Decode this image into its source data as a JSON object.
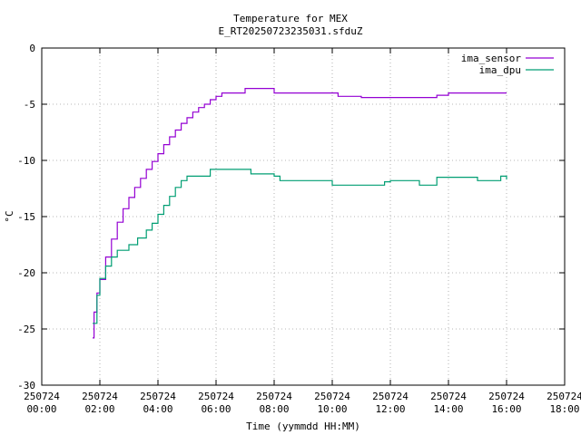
{
  "chart_data": {
    "type": "line",
    "title": "Temperature for MEX",
    "subtitle": "E_RT20250723235031.sfduZ",
    "xlabel": "Time (yymmdd HH:MM)",
    "ylabel": "°C",
    "xlim_hours": [
      0,
      18
    ],
    "ylim": [
      -30,
      0
    ],
    "grid": true,
    "legend_position": "top-right",
    "x_ticks": [
      {
        "date": "250724",
        "time": "00:00"
      },
      {
        "date": "250724",
        "time": "02:00"
      },
      {
        "date": "250724",
        "time": "04:00"
      },
      {
        "date": "250724",
        "time": "06:00"
      },
      {
        "date": "250724",
        "time": "08:00"
      },
      {
        "date": "250724",
        "time": "10:00"
      },
      {
        "date": "250724",
        "time": "12:00"
      },
      {
        "date": "250724",
        "time": "14:00"
      },
      {
        "date": "250724",
        "time": "16:00"
      },
      {
        "date": "250724",
        "time": "18:00"
      }
    ],
    "y_ticks": [
      "0",
      "-5",
      "-10",
      "-15",
      "-20",
      "-25",
      "-30"
    ],
    "series": [
      {
        "name": "ima_sensor",
        "color": "#9400d3",
        "points": [
          [
            1.75,
            -25.8
          ],
          [
            1.8,
            -23.5
          ],
          [
            1.9,
            -21.8
          ],
          [
            2.0,
            -20.6
          ],
          [
            2.2,
            -18.6
          ],
          [
            2.4,
            -17.0
          ],
          [
            2.6,
            -15.5
          ],
          [
            2.8,
            -14.3
          ],
          [
            3.0,
            -13.3
          ],
          [
            3.2,
            -12.4
          ],
          [
            3.4,
            -11.6
          ],
          [
            3.6,
            -10.8
          ],
          [
            3.8,
            -10.1
          ],
          [
            4.0,
            -9.4
          ],
          [
            4.2,
            -8.6
          ],
          [
            4.4,
            -7.9
          ],
          [
            4.6,
            -7.3
          ],
          [
            4.8,
            -6.7
          ],
          [
            5.0,
            -6.2
          ],
          [
            5.2,
            -5.7
          ],
          [
            5.4,
            -5.3
          ],
          [
            5.6,
            -5.0
          ],
          [
            5.8,
            -4.6
          ],
          [
            6.0,
            -4.3
          ],
          [
            6.2,
            -4.0
          ],
          [
            7.0,
            -3.6
          ],
          [
            8.0,
            -4.0
          ],
          [
            10.0,
            -4.0
          ],
          [
            10.2,
            -4.3
          ],
          [
            11.0,
            -4.4
          ],
          [
            13.0,
            -4.4
          ],
          [
            13.6,
            -4.2
          ],
          [
            14.0,
            -4.0
          ],
          [
            16.0,
            -4.0
          ]
        ]
      },
      {
        "name": "ima_dpu",
        "color": "#009e73",
        "points": [
          [
            1.75,
            -24.5
          ],
          [
            1.9,
            -22.0
          ],
          [
            2.0,
            -20.5
          ],
          [
            2.2,
            -19.4
          ],
          [
            2.4,
            -18.6
          ],
          [
            2.6,
            -18.0
          ],
          [
            3.0,
            -17.5
          ],
          [
            3.3,
            -16.9
          ],
          [
            3.6,
            -16.2
          ],
          [
            3.8,
            -15.6
          ],
          [
            4.0,
            -14.8
          ],
          [
            4.2,
            -14.0
          ],
          [
            4.4,
            -13.2
          ],
          [
            4.6,
            -12.4
          ],
          [
            4.8,
            -11.8
          ],
          [
            5.0,
            -11.4
          ],
          [
            5.8,
            -10.8
          ],
          [
            7.0,
            -10.8
          ],
          [
            7.2,
            -11.2
          ],
          [
            8.0,
            -11.4
          ],
          [
            8.2,
            -11.8
          ],
          [
            10.0,
            -12.2
          ],
          [
            11.0,
            -12.2
          ],
          [
            11.8,
            -11.9
          ],
          [
            12.0,
            -11.8
          ],
          [
            13.0,
            -12.2
          ],
          [
            13.6,
            -11.5
          ],
          [
            14.0,
            -11.5
          ],
          [
            15.0,
            -11.8
          ],
          [
            15.8,
            -11.4
          ],
          [
            16.0,
            -11.7
          ]
        ]
      }
    ]
  }
}
